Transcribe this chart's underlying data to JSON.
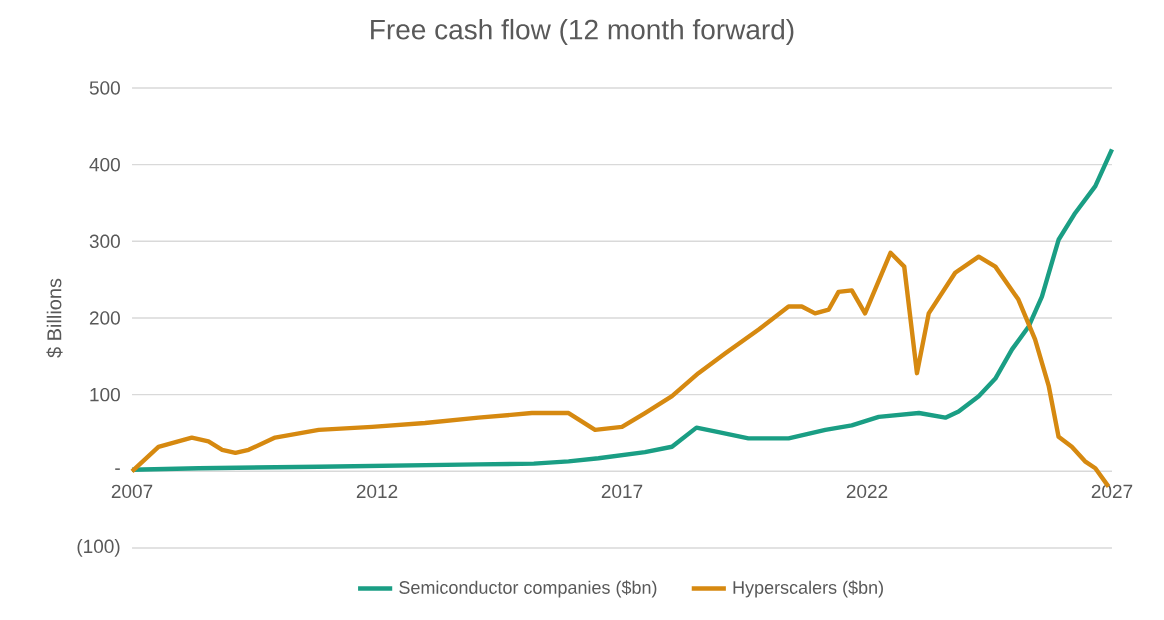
{
  "chart_data": {
    "type": "line",
    "title": "Free cash flow (12 month forward)",
    "ylabel": "$ Billions",
    "xlim": [
      2007,
      2027
    ],
    "xticks": [
      2007,
      2012,
      2017,
      2022,
      2027
    ],
    "ylim": [
      -100,
      500
    ],
    "yticks": [
      {
        "value": -100,
        "label": "(100)"
      },
      {
        "value": 0,
        "label": "-"
      },
      100,
      200,
      300,
      400,
      500
    ],
    "grid": "y",
    "legend": "bottom",
    "series": [
      {
        "name": "Semiconductor companies ($bn)",
        "color": "#1a9e84",
        "x": [
          2007,
          2008.36,
          2010.81,
          2014.07,
          2015.2,
          2015.91,
          2016.52,
          2017.47,
          2018.02,
          2018.52,
          2018.97,
          2019.58,
          2020.4,
          2021.15,
          2021.69,
          2022.24,
          2023.06,
          2023.6,
          2023.87,
          2024.28,
          2024.62,
          2024.96,
          2025.3,
          2025.57,
          2025.91,
          2026.25,
          2026.66,
          2027
        ],
        "values": [
          2,
          4,
          6,
          9,
          10,
          13,
          17,
          25,
          32,
          57,
          51,
          43,
          43,
          54,
          60,
          71,
          76,
          70,
          78,
          98,
          121,
          159,
          189,
          228,
          302,
          337,
          372,
          420
        ]
      },
      {
        "name": "Hyperscalers ($bn)",
        "color": "#d68910",
        "x": [
          2007,
          2007.54,
          2008.22,
          2008.56,
          2008.84,
          2009.11,
          2009.38,
          2009.92,
          2010.81,
          2011.9,
          2012.98,
          2014.07,
          2015.16,
          2015.91,
          2016.45,
          2017.0,
          2017.47,
          2018.02,
          2018.56,
          2019.11,
          2019.79,
          2020.4,
          2020.67,
          2020.94,
          2021.22,
          2021.42,
          2021.69,
          2021.96,
          2022.48,
          2022.76,
          2023.02,
          2023.26,
          2023.8,
          2024.28,
          2024.62,
          2025.09,
          2025.43,
          2025.71,
          2025.91,
          2026.18,
          2026.45,
          2026.66,
          2026.93
        ],
        "values": [
          0,
          32,
          44,
          39,
          28,
          24,
          28,
          44,
          54,
          58,
          63,
          70,
          76,
          76,
          54,
          58,
          76,
          98,
          128,
          154,
          185,
          215,
          215,
          206,
          211,
          234,
          236,
          206,
          285,
          267,
          128,
          206,
          259,
          280,
          267,
          224,
          172,
          111,
          45,
          32,
          13,
          4,
          -20
        ]
      }
    ]
  }
}
